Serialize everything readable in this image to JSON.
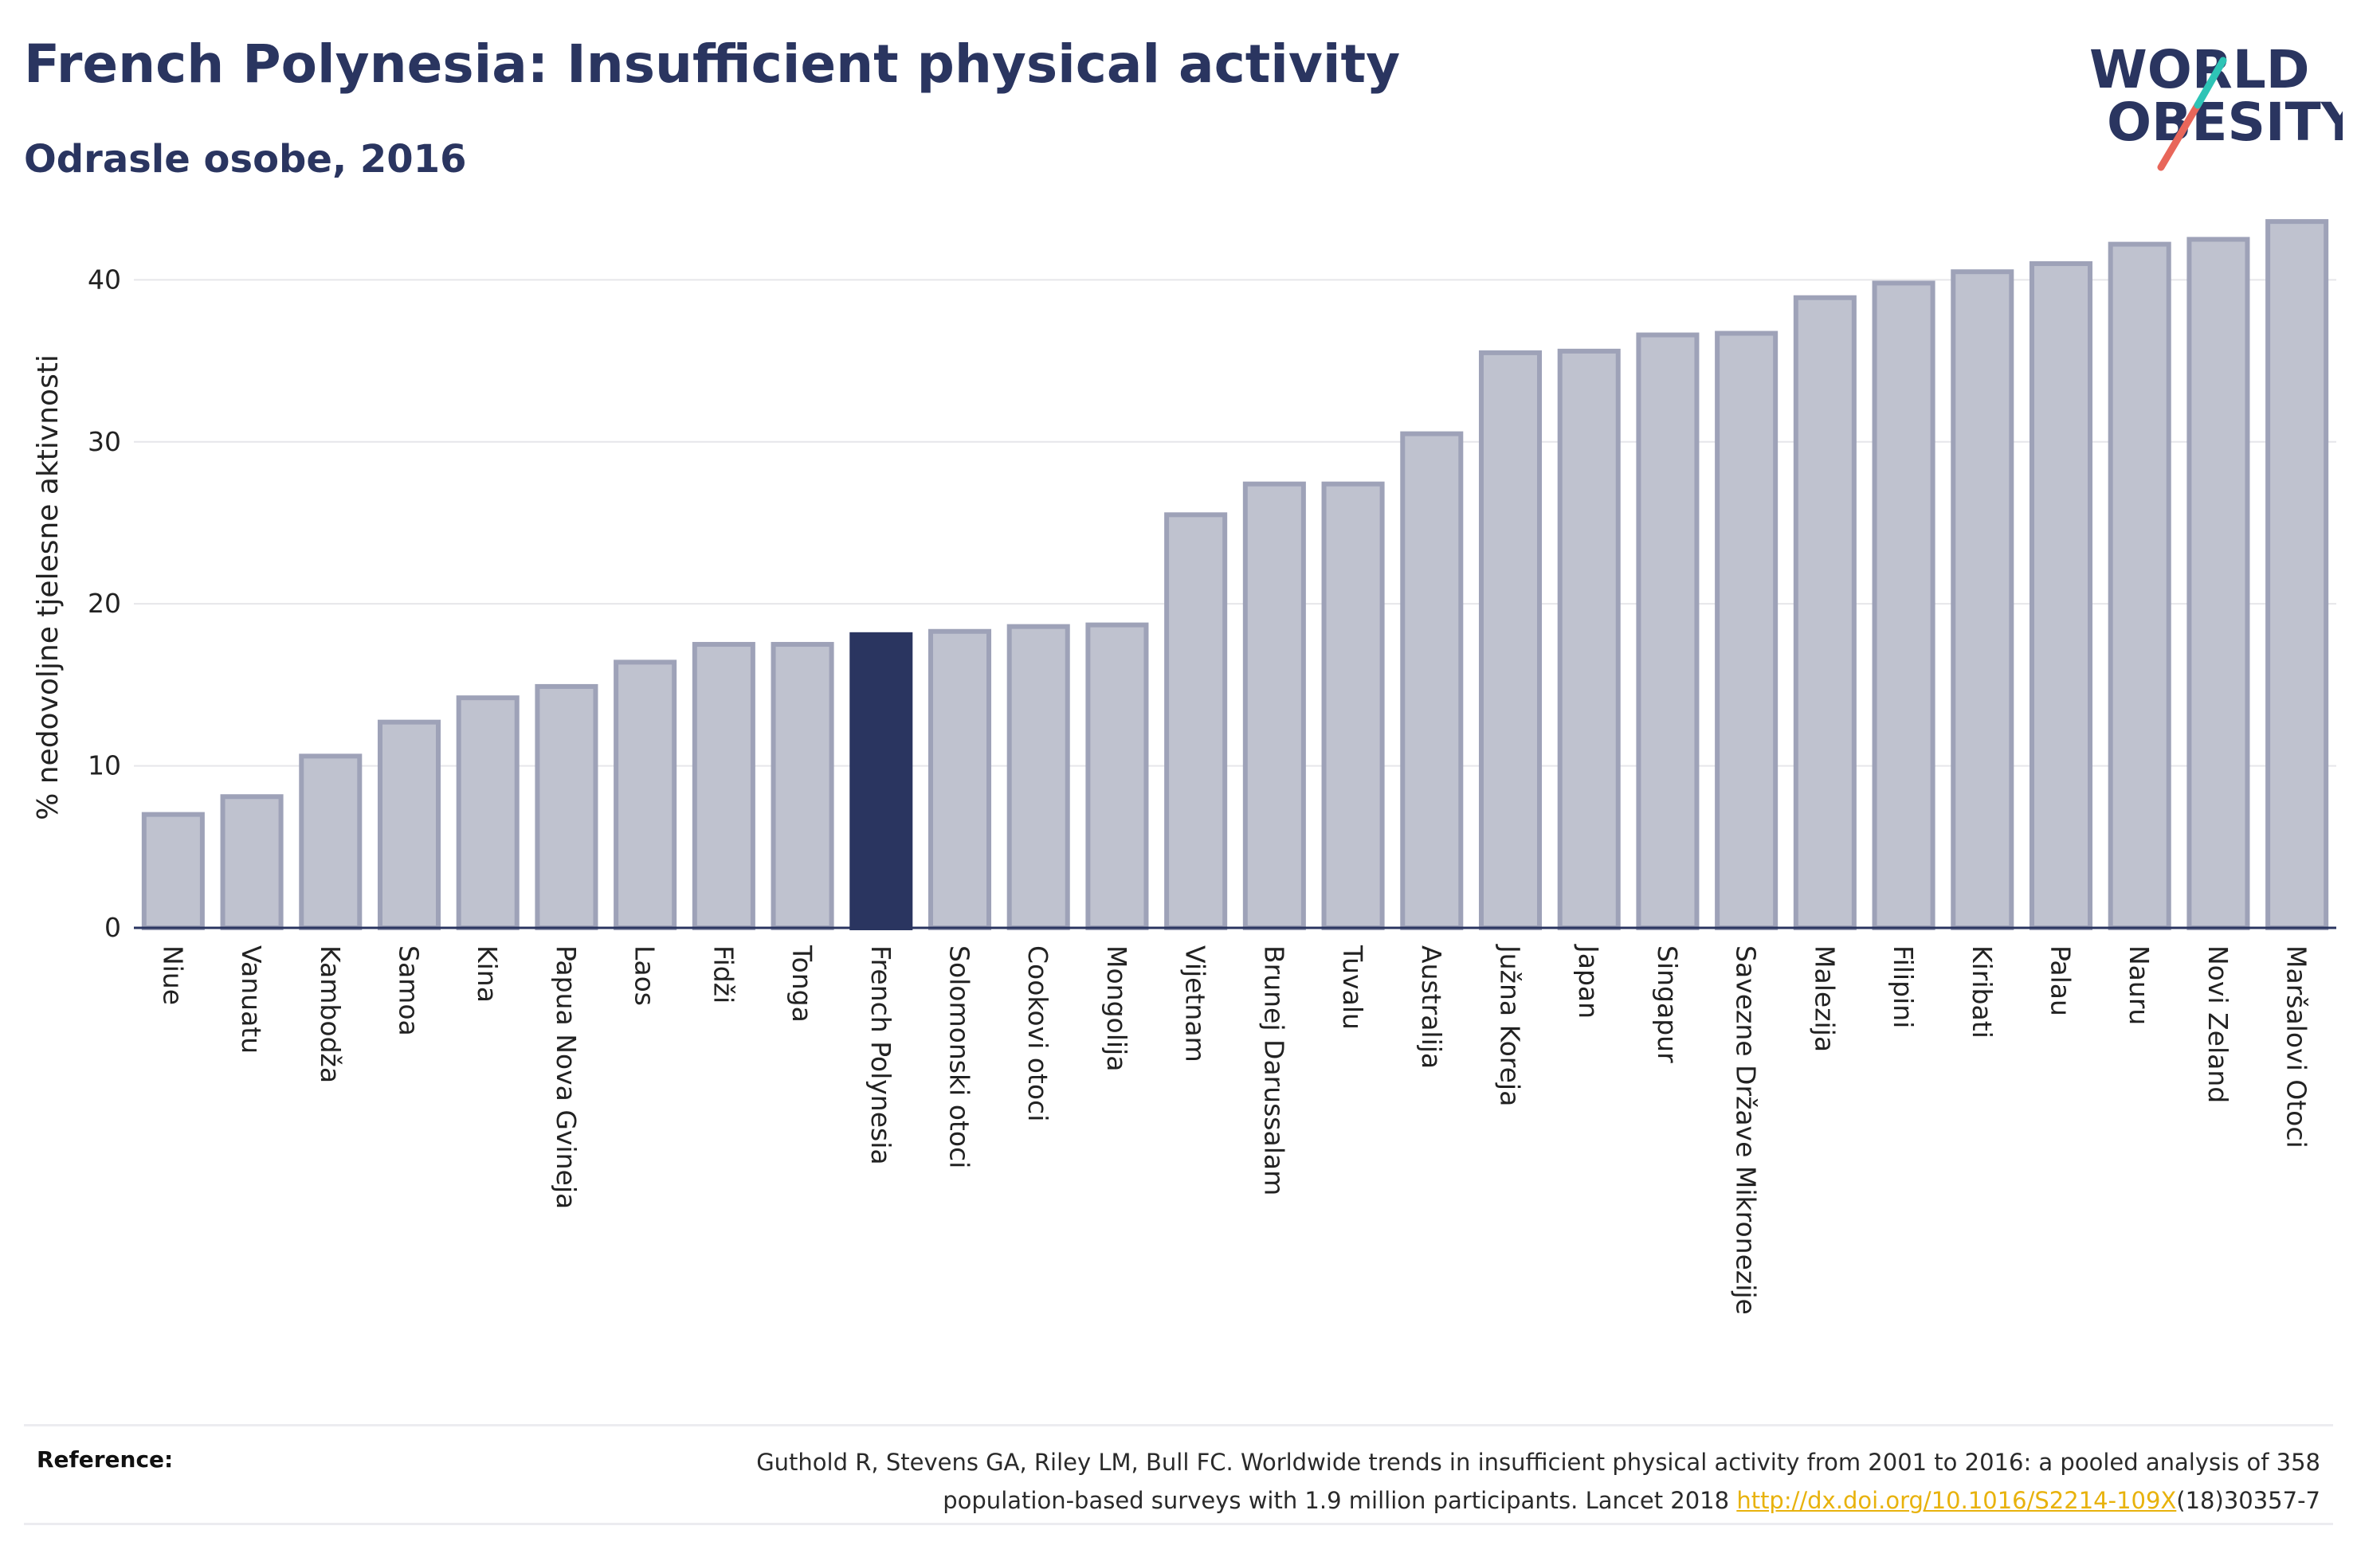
{
  "header": {
    "title": "French Polynesia: Insufficient physical activity",
    "subtitle": "Odrasle osobe, 2016"
  },
  "logo": {
    "line1": "WORLD",
    "line2": "OBESITY"
  },
  "chart_data": {
    "type": "bar",
    "title": "French Polynesia: Insufficient physical activity",
    "subtitle": "Odrasle osobe, 2016",
    "ylabel": "% nedovoljne tjelesne aktivnosti",
    "xlabel": "",
    "ylim": [
      0,
      44
    ],
    "yticks": [
      0,
      10,
      20,
      30,
      40
    ],
    "grid": true,
    "highlight": "French Polynesia",
    "colors": {
      "bar": "#bfc2cf",
      "bar_edge": "#9ea2b8",
      "highlight": "#2a3560"
    },
    "categories": [
      "Niue",
      "Vanuatu",
      "Kambodža",
      "Samoa",
      "Kina",
      "Papua Nova Gvineja",
      "Laos",
      "Fidži",
      "Tonga",
      "French Polynesia",
      "Solomonski otoci",
      "Cookovi otoci",
      "Mongolija",
      "Vijetnam",
      "Brunej Darussalam",
      "Tuvalu",
      "Australija",
      "Južna Koreja",
      "Japan",
      "Singapur",
      "Savezne Države Mikronezije",
      "Malezija",
      "Filipini",
      "Kiribati",
      "Palau",
      "Nauru",
      "Novi Zeland",
      "Maršalovi Otoci"
    ],
    "values": [
      7.0,
      8.1,
      10.6,
      12.7,
      14.2,
      14.9,
      16.4,
      17.5,
      17.5,
      18.1,
      18.3,
      18.6,
      18.7,
      25.5,
      27.4,
      27.4,
      30.5,
      35.5,
      35.6,
      36.6,
      36.7,
      38.9,
      39.8,
      40.5,
      41.0,
      42.2,
      42.5,
      43.6
    ]
  },
  "reference": {
    "label": "Reference:",
    "text_line1": "Guthold R, Stevens GA, Riley LM, Bull FC. Worldwide trends in insufficient physical activity from 2001 to 2016: a pooled analysis of 358",
    "text_line2_pre": "population-based surveys with 1.9 million participants. Lancet 2018 ",
    "link": "http://dx.doi.org/10.1016/S2214-109X",
    "text_line2_post": "(18)30357-7"
  }
}
